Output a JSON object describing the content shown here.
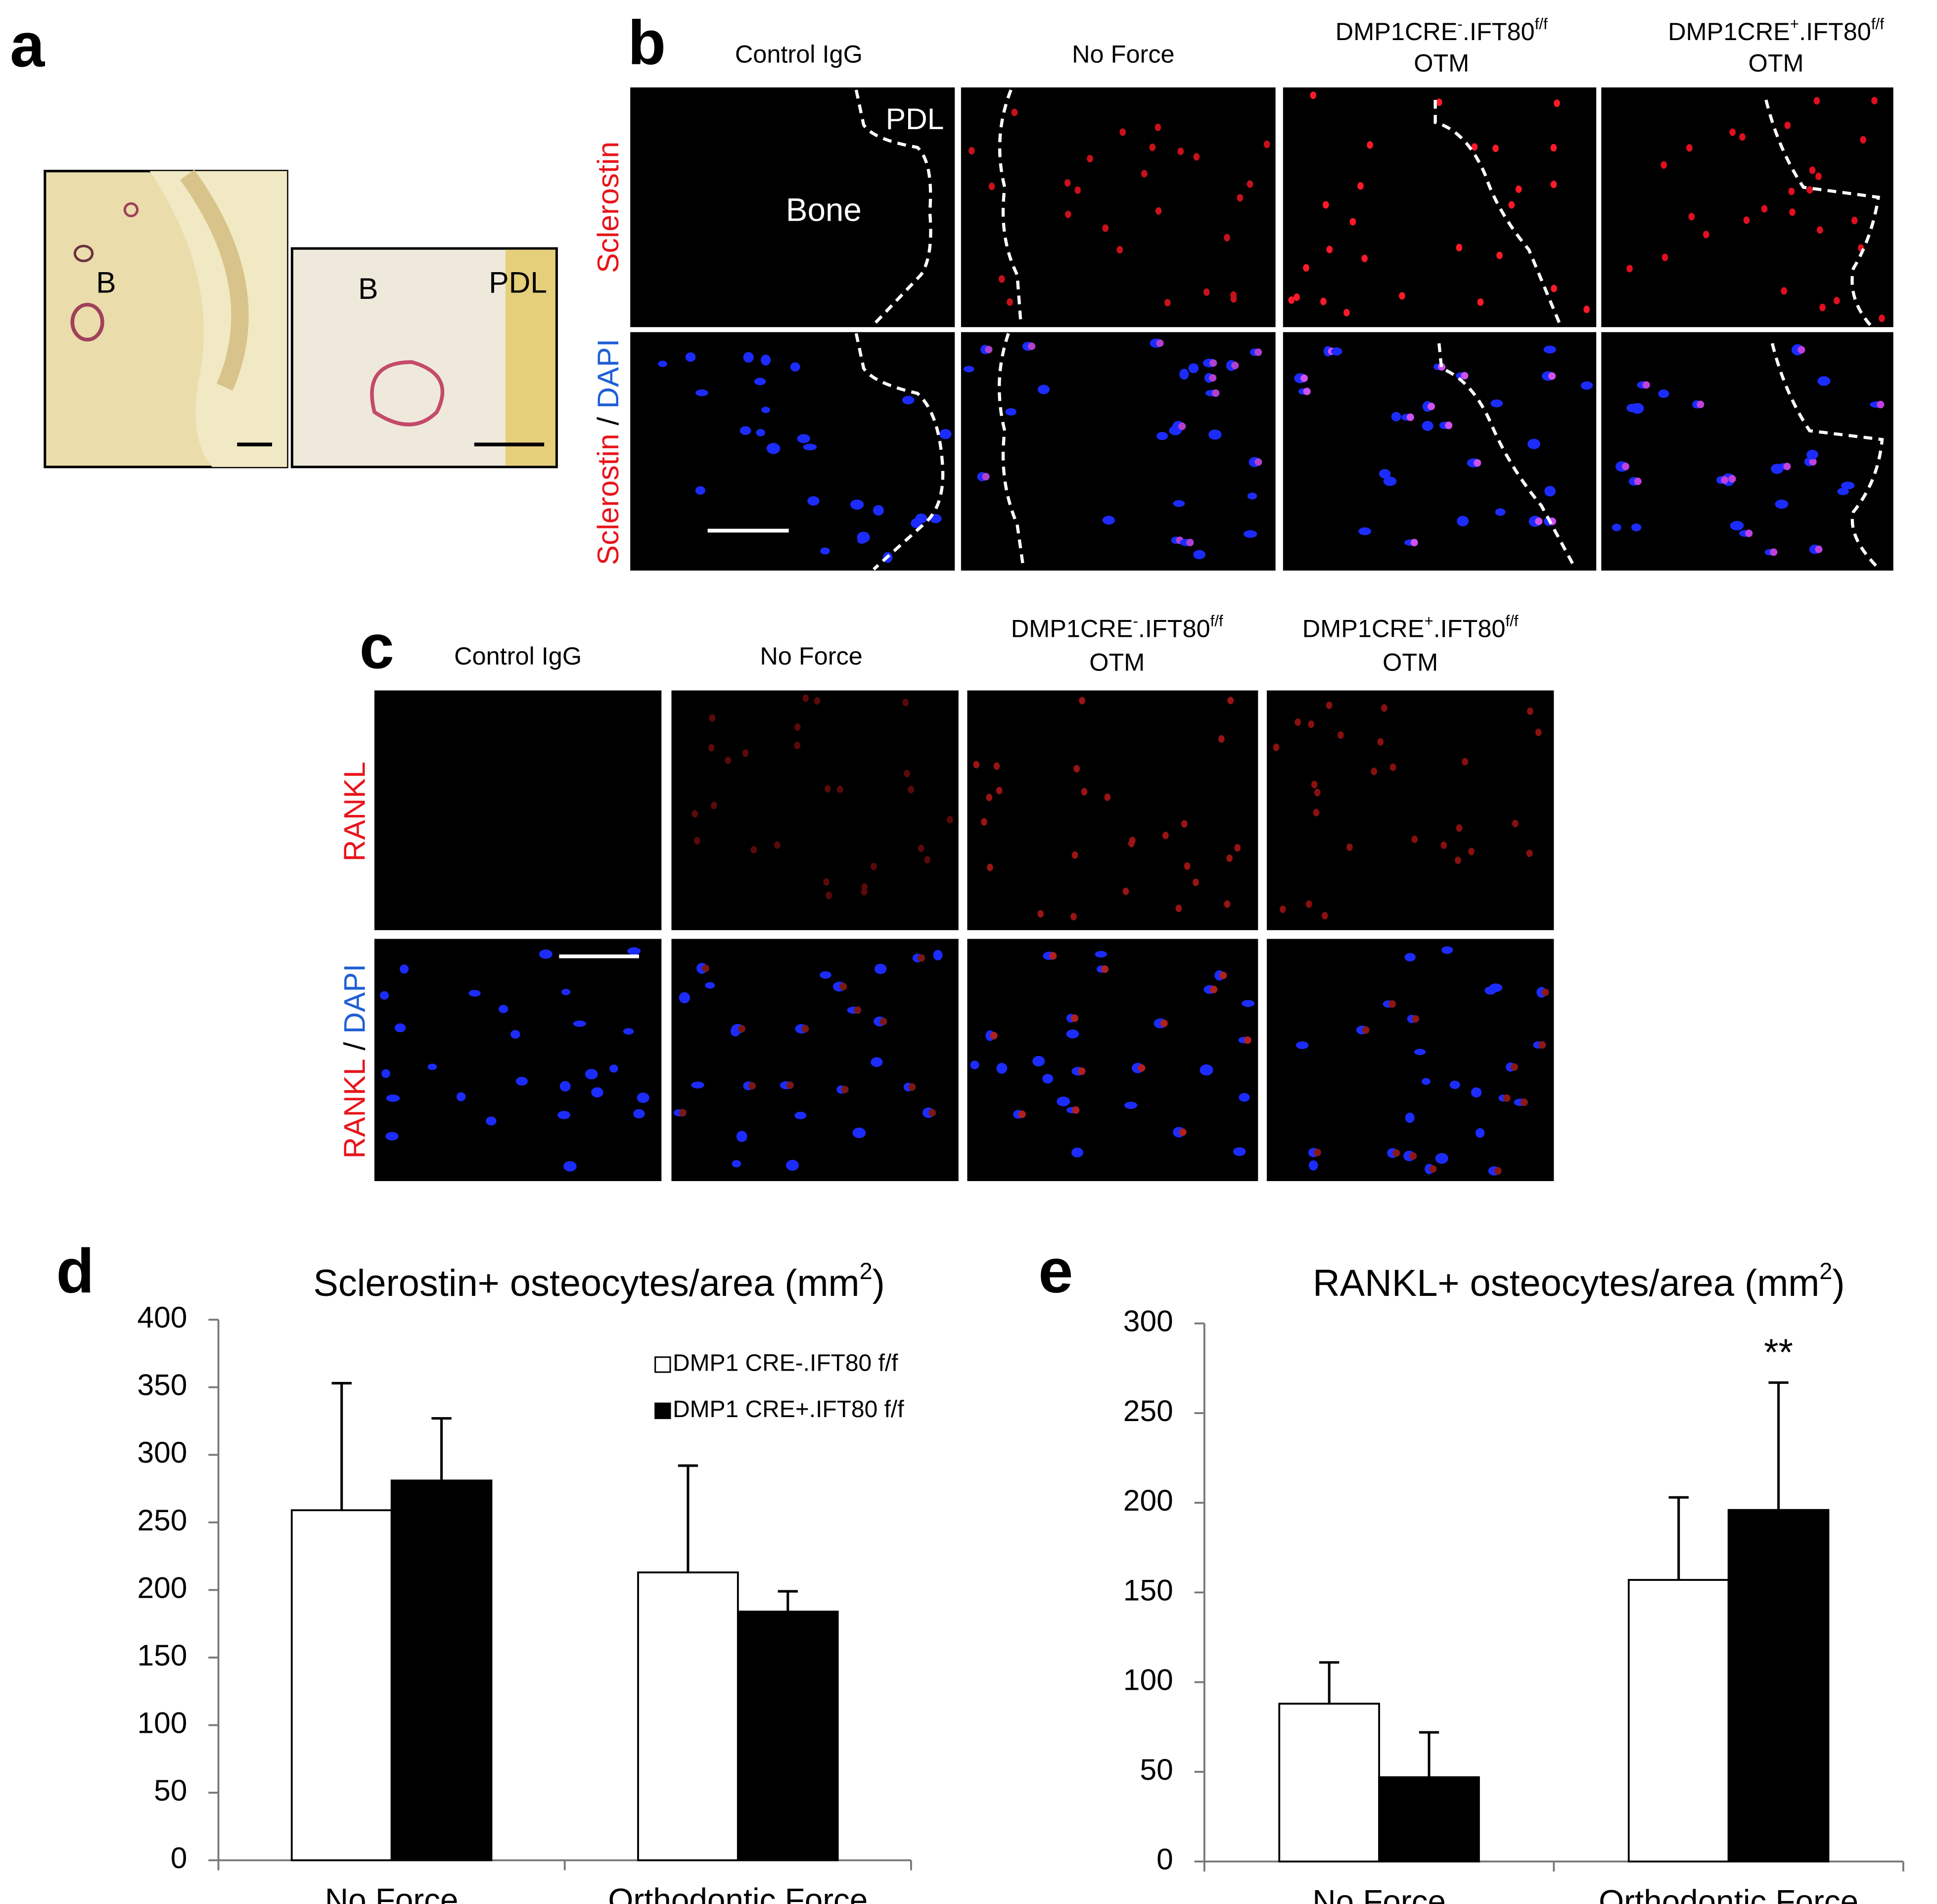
{
  "figure": {
    "a": {
      "label": "a",
      "left_image_label": "B",
      "right_image_label_b": "B",
      "right_image_label_pdl": "PDL"
    },
    "b": {
      "label": "b",
      "columns": [
        [
          [
            {
              "text": "Control IgG"
            }
          ]
        ],
        [
          [
            {
              "text": "No Force"
            }
          ]
        ],
        [
          [
            {
              "text": "DMP1CRE"
            },
            {
              "sup": "-"
            },
            {
              "text": ".IFT80"
            },
            {
              "sup": "f/f"
            }
          ],
          [
            {
              "text": "OTM"
            }
          ]
        ],
        [
          [
            {
              "text": "DMP1CRE"
            },
            {
              "sup": "+"
            },
            {
              "text": ".IFT80"
            },
            {
              "sup": "f/f"
            }
          ],
          [
            {
              "text": "OTM"
            }
          ]
        ]
      ],
      "rows": [
        [
          {
            "text": "Sclerostin",
            "color": "#e8141b"
          }
        ],
        [
          {
            "text": "Sclerostin",
            "color": "#e8141b"
          },
          {
            "text": " / ",
            "color": "#000000"
          },
          {
            "text": "DAPI",
            "color": "#1f5fd6"
          }
        ]
      ],
      "pdl": "PDL",
      "bone": "Bone"
    },
    "c": {
      "label": "c",
      "columns": [
        [
          [
            {
              "text": "Control IgG"
            }
          ]
        ],
        [
          [
            {
              "text": "No Force"
            }
          ]
        ],
        [
          [
            {
              "text": "DMP1CRE"
            },
            {
              "sup": "-"
            },
            {
              "text": ".IFT80"
            },
            {
              "sup": "f/f"
            }
          ],
          [
            {
              "text": "OTM"
            }
          ]
        ],
        [
          [
            {
              "text": "DMP1CRE"
            },
            {
              "sup": "+"
            },
            {
              "text": ".IFT80"
            },
            {
              "sup": "f/f"
            }
          ],
          [
            {
              "text": "OTM"
            }
          ]
        ]
      ],
      "rows": [
        [
          {
            "text": "RANKL",
            "color": "#e8141b"
          }
        ],
        [
          {
            "text": "RANKL",
            "color": "#e8141b"
          },
          {
            "text": " / ",
            "color": "#000000"
          },
          {
            "text": "DAPI",
            "color": "#1f5fd6"
          }
        ]
      ]
    }
  },
  "chart_data": [
    {
      "type": "bar",
      "panel_label": "d",
      "title": [
        {
          "text": "Sclerostin+ osteocytes/area (mm"
        },
        {
          "sup": "2"
        },
        {
          "text": ")"
        }
      ],
      "categories": [
        "No Force",
        "Orthodontic Force"
      ],
      "series": [
        {
          "name": "DMP1 CRE-.IFT80 f/f",
          "color": "#ffffff",
          "values": [
            259,
            213
          ],
          "errors": [
            94,
            79
          ]
        },
        {
          "name": "DMP1 CRE+.IFT80 f/f",
          "color": "#000000",
          "values": [
            281,
            184
          ],
          "errors": [
            46,
            15
          ]
        }
      ],
      "ylim": [
        0,
        400
      ],
      "yticks": [
        0,
        50,
        100,
        150,
        200,
        250,
        300,
        350,
        400
      ],
      "legend": "upper right"
    },
    {
      "type": "bar",
      "panel_label": "e",
      "title": [
        {
          "text": "RANKL+ osteocytes/area (mm"
        },
        {
          "sup": "2"
        },
        {
          "text": ")"
        }
      ],
      "categories": [
        "No Force",
        "Orthodontic Force"
      ],
      "series": [
        {
          "name": "DMP1 CRE-.IFT80 f/f",
          "color": "#ffffff",
          "values": [
            88,
            157
          ],
          "errors": [
            23,
            46
          ]
        },
        {
          "name": "DMP1 CRE+.IFT80 f/f",
          "color": "#000000",
          "values": [
            47,
            196
          ],
          "errors": [
            25,
            71
          ]
        }
      ],
      "ylim": [
        0,
        300
      ],
      "yticks": [
        0,
        50,
        100,
        150,
        200,
        250,
        300
      ],
      "annotation": "**"
    }
  ]
}
